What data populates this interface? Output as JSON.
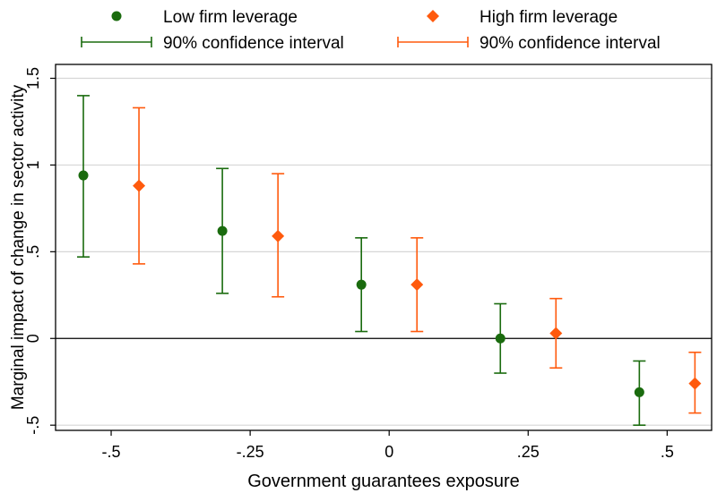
{
  "chart_data": {
    "type": "scatter",
    "xlabel": "Government guarantees exposure",
    "ylabel": "Marginal impact of change in sector activity",
    "xlim": [
      -0.6,
      0.58
    ],
    "ylim": [
      -0.53,
      1.58
    ],
    "xticks": [
      {
        "value": -0.5,
        "label": "-.5"
      },
      {
        "value": -0.25,
        "label": "-.25"
      },
      {
        "value": 0,
        "label": "0"
      },
      {
        "value": 0.25,
        "label": ".25"
      },
      {
        "value": 0.5,
        "label": ".5"
      }
    ],
    "yticks": [
      {
        "value": -0.5,
        "label": "-.5"
      },
      {
        "value": 0,
        "label": "0"
      },
      {
        "value": 0.5,
        "label": ".5"
      },
      {
        "value": 1,
        "label": "1"
      },
      {
        "value": 1.5,
        "label": "1.5"
      }
    ],
    "grid": "horizontal",
    "zero_line": true,
    "legend": {
      "placement": "top",
      "entries": [
        {
          "label": "Low firm leverage",
          "kind": "marker",
          "series": 0
        },
        {
          "label": "High firm leverage",
          "kind": "marker",
          "series": 1
        },
        {
          "label": "90% confidence interval",
          "kind": "ci",
          "series": 0
        },
        {
          "label": "90% confidence interval",
          "kind": "ci",
          "series": 1
        }
      ]
    },
    "series": [
      {
        "name": "Low firm leverage",
        "marker": "circle",
        "color": "#1a6b0e",
        "points": [
          {
            "x": -0.55,
            "y": 0.94,
            "ci": [
              0.47,
              1.4
            ]
          },
          {
            "x": -0.3,
            "y": 0.62,
            "ci": [
              0.26,
              0.98
            ]
          },
          {
            "x": -0.05,
            "y": 0.31,
            "ci": [
              0.04,
              0.58
            ]
          },
          {
            "x": 0.2,
            "y": 0.0,
            "ci": [
              -0.2,
              0.2
            ]
          },
          {
            "x": 0.45,
            "y": -0.31,
            "ci": [
              -0.5,
              -0.13
            ]
          }
        ]
      },
      {
        "name": "High firm leverage",
        "marker": "diamond",
        "color": "#ff5a0d",
        "points": [
          {
            "x": -0.45,
            "y": 0.88,
            "ci": [
              0.43,
              1.33
            ]
          },
          {
            "x": -0.2,
            "y": 0.59,
            "ci": [
              0.24,
              0.95
            ]
          },
          {
            "x": 0.05,
            "y": 0.31,
            "ci": [
              0.04,
              0.58
            ]
          },
          {
            "x": 0.3,
            "y": 0.03,
            "ci": [
              -0.17,
              0.23
            ]
          },
          {
            "x": 0.55,
            "y": -0.26,
            "ci": [
              -0.43,
              -0.08
            ]
          }
        ]
      }
    ]
  }
}
